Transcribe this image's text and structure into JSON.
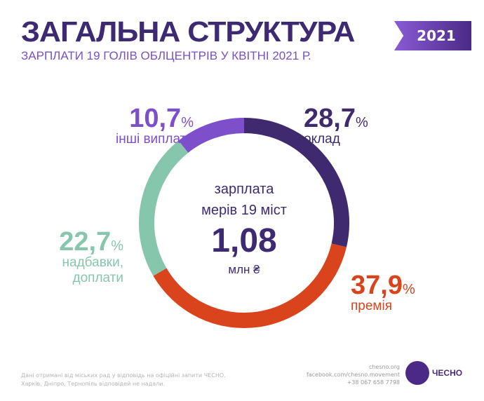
{
  "header": {
    "title": "ЗАГАЛЬНА СТРУКТУРА",
    "subtitle": "ЗАРПЛАТИ 19 ГОЛІВ ОБЛЦЕНТРІВ У КВІТНІ 2021 Р.",
    "year": "2021"
  },
  "chart_data": {
    "type": "pie",
    "donut": true,
    "title": "зарплата мерів 19 міст",
    "total": {
      "label_top": "зарплата",
      "label_mid": "мерів 19 міст",
      "value": "1,08",
      "unit": "млн ₴"
    },
    "slices": [
      {
        "label": "оклад",
        "value": 28.7,
        "display": "28,7",
        "color": "#3f2a70"
      },
      {
        "label": "премія",
        "value": 37.9,
        "display": "37,9",
        "color": "#d9441c"
      },
      {
        "label": "надбавки, доплати",
        "value": 22.7,
        "display": "22,7",
        "color": "#86c6ad"
      },
      {
        "label": "інші виплати",
        "value": 10.7,
        "display": "10,7",
        "color": "#7d4fcb"
      }
    ],
    "percent_sign": "%"
  },
  "footer": {
    "note_line1": "Дані отримані від міських рад у відповідь на офіційні запити ЧЕСНО.",
    "note_line2": "Харків, Дніпро, Тернопіль відповідей не надали.",
    "site": "chesno.org",
    "facebook": "facebook.com/chesno.movement",
    "phone": "+38 067 658 7798",
    "logo_text": "ЧЕСНО"
  }
}
